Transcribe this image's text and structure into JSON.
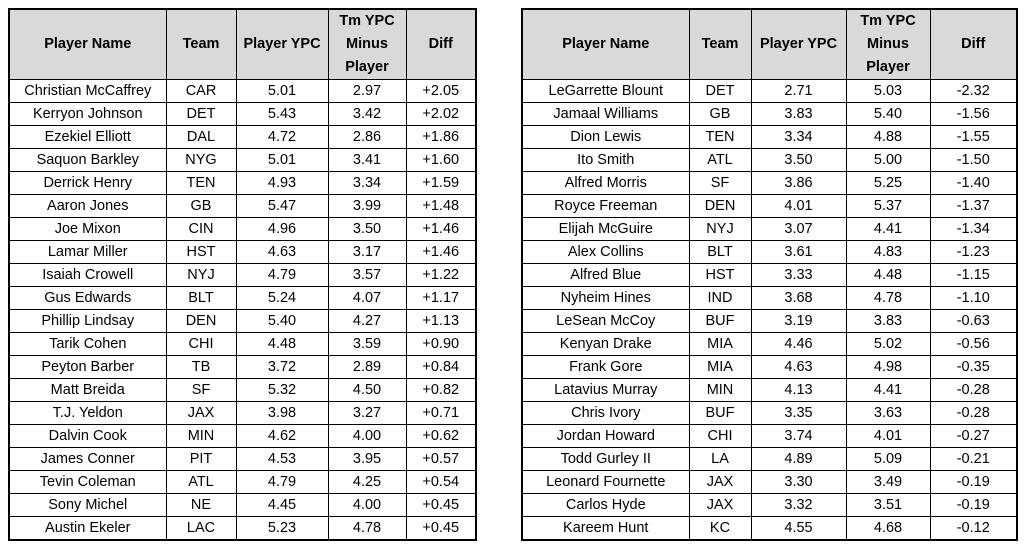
{
  "chart_data": [
    {
      "type": "table",
      "columns": [
        "Player Name",
        "Team",
        "Player YPC",
        "Tm YPC Minus Player",
        "Diff"
      ],
      "rows": [
        [
          "Christian McCaffrey",
          "CAR",
          "5.01",
          "2.97",
          "+2.05"
        ],
        [
          "Kerryon Johnson",
          "DET",
          "5.43",
          "3.42",
          "+2.02"
        ],
        [
          "Ezekiel Elliott",
          "DAL",
          "4.72",
          "2.86",
          "+1.86"
        ],
        [
          "Saquon Barkley",
          "NYG",
          "5.01",
          "3.41",
          "+1.60"
        ],
        [
          "Derrick Henry",
          "TEN",
          "4.93",
          "3.34",
          "+1.59"
        ],
        [
          "Aaron Jones",
          "GB",
          "5.47",
          "3.99",
          "+1.48"
        ],
        [
          "Joe Mixon",
          "CIN",
          "4.96",
          "3.50",
          "+1.46"
        ],
        [
          "Lamar Miller",
          "HST",
          "4.63",
          "3.17",
          "+1.46"
        ],
        [
          "Isaiah Crowell",
          "NYJ",
          "4.79",
          "3.57",
          "+1.22"
        ],
        [
          "Gus Edwards",
          "BLT",
          "5.24",
          "4.07",
          "+1.17"
        ],
        [
          "Phillip Lindsay",
          "DEN",
          "5.40",
          "4.27",
          "+1.13"
        ],
        [
          "Tarik Cohen",
          "CHI",
          "4.48",
          "3.59",
          "+0.90"
        ],
        [
          "Peyton Barber",
          "TB",
          "3.72",
          "2.89",
          "+0.84"
        ],
        [
          "Matt Breida",
          "SF",
          "5.32",
          "4.50",
          "+0.82"
        ],
        [
          "T.J. Yeldon",
          "JAX",
          "3.98",
          "3.27",
          "+0.71"
        ],
        [
          "Dalvin Cook",
          "MIN",
          "4.62",
          "4.00",
          "+0.62"
        ],
        [
          "James Conner",
          "PIT",
          "4.53",
          "3.95",
          "+0.57"
        ],
        [
          "Tevin Coleman",
          "ATL",
          "4.79",
          "4.25",
          "+0.54"
        ],
        [
          "Sony Michel",
          "NE",
          "4.45",
          "4.00",
          "+0.45"
        ],
        [
          "Austin Ekeler",
          "LAC",
          "5.23",
          "4.78",
          "+0.45"
        ]
      ]
    },
    {
      "type": "table",
      "columns": [
        "Player Name",
        "Team",
        "Player YPC",
        "Tm YPC Minus Player",
        "Diff"
      ],
      "rows": [
        [
          "LeGarrette Blount",
          "DET",
          "2.71",
          "5.03",
          "-2.32"
        ],
        [
          "Jamaal Williams",
          "GB",
          "3.83",
          "5.40",
          "-1.56"
        ],
        [
          "Dion Lewis",
          "TEN",
          "3.34",
          "4.88",
          "-1.55"
        ],
        [
          "Ito Smith",
          "ATL",
          "3.50",
          "5.00",
          "-1.50"
        ],
        [
          "Alfred Morris",
          "SF",
          "3.86",
          "5.25",
          "-1.40"
        ],
        [
          "Royce Freeman",
          "DEN",
          "4.01",
          "5.37",
          "-1.37"
        ],
        [
          "Elijah McGuire",
          "NYJ",
          "3.07",
          "4.41",
          "-1.34"
        ],
        [
          "Alex Collins",
          "BLT",
          "3.61",
          "4.83",
          "-1.23"
        ],
        [
          "Alfred Blue",
          "HST",
          "3.33",
          "4.48",
          "-1.15"
        ],
        [
          "Nyheim Hines",
          "IND",
          "3.68",
          "4.78",
          "-1.10"
        ],
        [
          "LeSean McCoy",
          "BUF",
          "3.19",
          "3.83",
          "-0.63"
        ],
        [
          "Kenyan Drake",
          "MIA",
          "4.46",
          "5.02",
          "-0.56"
        ],
        [
          "Frank Gore",
          "MIA",
          "4.63",
          "4.98",
          "-0.35"
        ],
        [
          "Latavius Murray",
          "MIN",
          "4.13",
          "4.41",
          "-0.28"
        ],
        [
          "Chris Ivory",
          "BUF",
          "3.35",
          "3.63",
          "-0.28"
        ],
        [
          "Jordan Howard",
          "CHI",
          "3.74",
          "4.01",
          "-0.27"
        ],
        [
          "Todd Gurley II",
          "LA",
          "4.89",
          "5.09",
          "-0.21"
        ],
        [
          "Leonard Fournette",
          "JAX",
          "3.30",
          "3.49",
          "-0.19"
        ],
        [
          "Carlos Hyde",
          "JAX",
          "3.32",
          "3.51",
          "-0.19"
        ],
        [
          "Kareem Hunt",
          "KC",
          "4.55",
          "4.68",
          "-0.12"
        ]
      ]
    }
  ],
  "colors": {
    "header_bg": "#d9d9d9",
    "border": "#000000"
  }
}
